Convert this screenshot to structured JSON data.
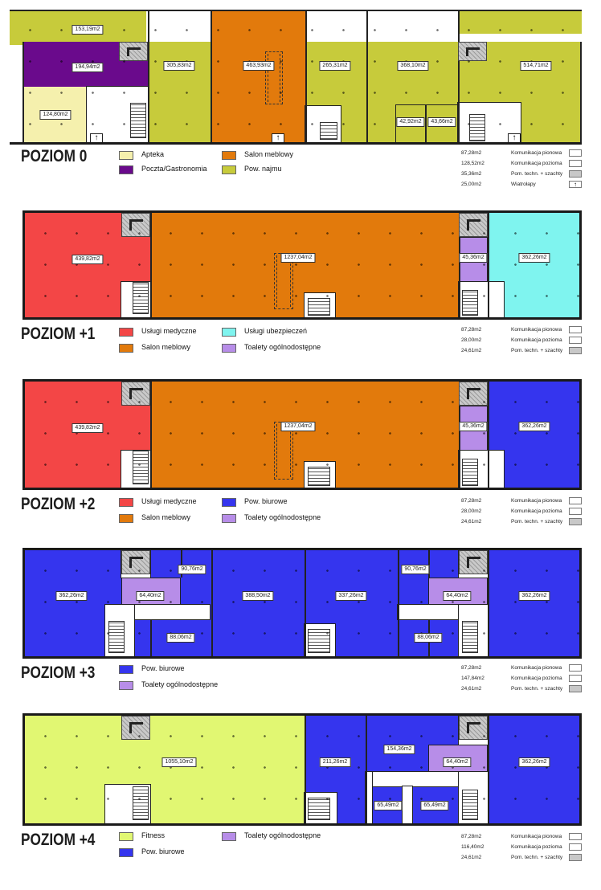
{
  "colors": {
    "apteka": "#f5f0ad",
    "poczta": "#6a0a8c",
    "salon": "#e27a0c",
    "najmu": "#c7cb3b",
    "medyczne": "#f34646",
    "ubezpieczen": "#7ff4ef",
    "toalety": "#b78de8",
    "biurowe": "#3535ee",
    "fitness": "#e1f772"
  },
  "levels": [
    {
      "title": "POZIOM 0",
      "areas": [
        "153,19m2",
        "194,94m2",
        "124,80m2",
        "305,83m2",
        "463,93m2",
        "265,31m2",
        "368,10m2",
        "514,71m2",
        "42,92m2",
        "43,66m2"
      ],
      "legend": [
        "Apteka",
        "Poczta/Gastronomia",
        "Salon meblowy",
        "Pow. najmu"
      ],
      "stats": [
        {
          "value": "87,28m2",
          "label": "Komunikacja pionowa"
        },
        {
          "value": "128,52m2",
          "label": "Komunikacja pozioma"
        },
        {
          "value": "35,36m2",
          "label": "Pom. techn. + szachty"
        },
        {
          "value": "25,00m2",
          "label": "Wiatrołapy"
        }
      ]
    },
    {
      "title": "POZIOM +1",
      "areas": [
        "439,82m2",
        "1237,04m2",
        "45,36m2",
        "362,26m2"
      ],
      "legend": [
        "Usługi medyczne",
        "Salon meblowy",
        "Usługi ubezpieczeń",
        "Toalety ogólnodostępne"
      ],
      "stats": [
        {
          "value": "87,28m2",
          "label": "Komunikacja pionowa"
        },
        {
          "value": "28,00m2",
          "label": "Komunikacja pozioma"
        },
        {
          "value": "24,61m2",
          "label": "Pom. techn. + szachty"
        }
      ]
    },
    {
      "title": "POZIOM +2",
      "areas": [
        "439,82m2",
        "1237,04m2",
        "45,36m2",
        "362,26m2"
      ],
      "legend": [
        "Usługi medyczne",
        "Salon meblowy",
        "Pow. biurowe",
        "Toalety ogólnodostępne"
      ],
      "stats": [
        {
          "value": "87,28m2",
          "label": "Komunikacja pionowa"
        },
        {
          "value": "28,00m2",
          "label": "Komunikacja pozioma"
        },
        {
          "value": "24,61m2",
          "label": "Pom. techn. + szachty"
        }
      ]
    },
    {
      "title": "POZIOM +3",
      "areas": [
        "362,26m2",
        "90,76m2",
        "64,40m2",
        "88,06m2",
        "388,50m2",
        "337,26m2",
        "90,76m2",
        "64,40m2",
        "88,06m2",
        "362,26m2"
      ],
      "legend": [
        "Pow. biurowe",
        "Toalety ogólnodostępne"
      ],
      "stats": [
        {
          "value": "87,28m2",
          "label": "Komunikacja pionowa"
        },
        {
          "value": "147,84m2",
          "label": "Komunikacja pozioma"
        },
        {
          "value": "24,61m2",
          "label": "Pom. techn. + szachty"
        }
      ]
    },
    {
      "title": "POZIOM +4",
      "areas": [
        "1055,10m2",
        "211,26m2",
        "154,36m2",
        "64,40m2",
        "362,26m2",
        "65,49m2",
        "65,49m2"
      ],
      "legend": [
        "Fitness",
        "Pow. biurowe",
        "Toalety ogólnodostępne"
      ],
      "stats": [
        {
          "value": "87,28m2",
          "label": "Komunikacja pionowa"
        },
        {
          "value": "116,40m2",
          "label": "Komunikacja pozioma"
        },
        {
          "value": "24,61m2",
          "label": "Pom. techn. + szachty"
        }
      ]
    }
  ]
}
